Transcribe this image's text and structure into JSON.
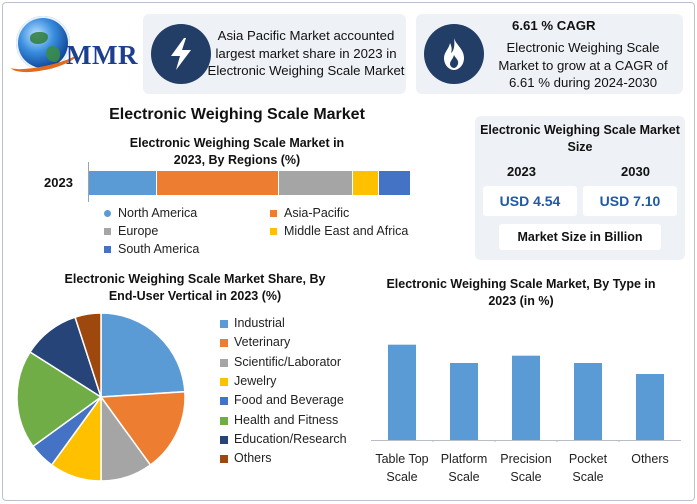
{
  "brand": {
    "logo_text": "MMR"
  },
  "callouts": {
    "region": {
      "icon": "lightning-icon",
      "text": "Asia Pacific Market accounted largest market share in 2023 in Electronic Weighing Scale Market"
    },
    "cagr": {
      "icon": "flame-icon",
      "title": "6.61 % CAGR",
      "text": "Electronic Weighing Scale Market to grow at a CAGR of 6.61 % during 2024-2030"
    }
  },
  "main_title": "Electronic Weighing Scale Market",
  "market_size": {
    "title": "Electronic Weighing Scale Market Size",
    "years": [
      "2023",
      "2030"
    ],
    "values": [
      "USD 4.54",
      "USD 7.10"
    ],
    "note": "Market Size in Billion"
  },
  "chart_data": [
    {
      "type": "bar",
      "orientation": "horizontal-stacked",
      "title": "Electronic Weighing Scale Market in 2023, By Regions (%)",
      "categories": [
        "2023"
      ],
      "series": [
        {
          "name": "North America",
          "values": [
            21
          ],
          "color": "#5b9bd5"
        },
        {
          "name": "Asia-Pacific",
          "values": [
            38
          ],
          "color": "#ed7d31"
        },
        {
          "name": "Europe",
          "values": [
            23
          ],
          "color": "#a5a5a5"
        },
        {
          "name": "Middle East and Africa",
          "values": [
            8
          ],
          "color": "#ffc000"
        },
        {
          "name": "South America",
          "values": [
            10
          ],
          "color": "#4472c4"
        }
      ],
      "legend_placement": "bottom"
    },
    {
      "type": "pie",
      "title": "Electronic Weighing Scale Market Share, By End-User Vertical in 2023 (%)",
      "slices": [
        {
          "name": "Industrial",
          "value": 24,
          "color": "#5b9bd5"
        },
        {
          "name": "Veterinary",
          "value": 16,
          "color": "#ed7d31"
        },
        {
          "name": "Scientific/Laborator",
          "value": 10,
          "color": "#a5a5a5"
        },
        {
          "name": "Jewelry",
          "value": 10,
          "color": "#ffc000"
        },
        {
          "name": "Food and Beverage",
          "value": 5,
          "color": "#4472c4"
        },
        {
          "name": "Health and Fitness",
          "value": 19,
          "color": "#70ad47"
        },
        {
          "name": "Education/Research",
          "value": 11,
          "color": "#264478"
        },
        {
          "name": "Others",
          "value": 5,
          "color": "#9e480e"
        }
      ],
      "legend_placement": "right"
    },
    {
      "type": "bar",
      "title": "Electronic Weighing Scale Market, By Type in 2023 (in %)",
      "categories": [
        "Table Top Scale",
        "Platform Scale",
        "Precision Scale",
        "Pocket Scale",
        "Others"
      ],
      "values": [
        26,
        21,
        23,
        21,
        18
      ],
      "ylim": [
        0,
        30
      ],
      "color": "#5b9bd5",
      "grid": false
    }
  ]
}
